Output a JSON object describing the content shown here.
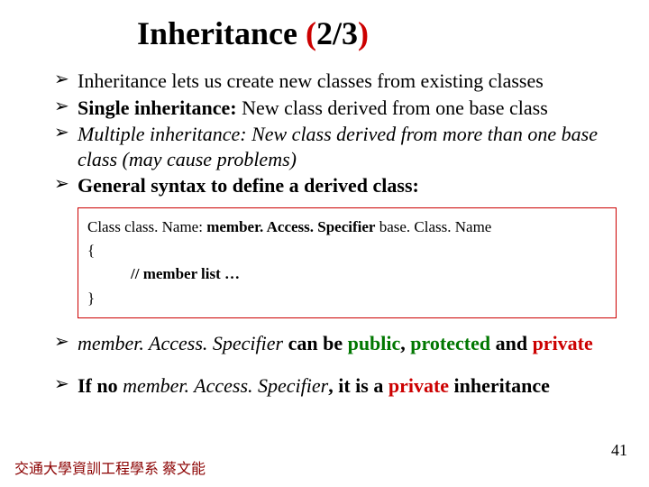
{
  "colors": {
    "title_c1": "#000000",
    "title_c2": "#cc0000",
    "title_c3": "#000000",
    "title_c4": "#cc0000",
    "green": "#007700",
    "red": "#cc0000",
    "box_border": "#cc0000",
    "footer": "#8b0000"
  },
  "title": {
    "p1": "Inheritance ",
    "p2": "(",
    "p3": "2/3",
    "p4": ")"
  },
  "bul1": {
    "text": "Inheritance lets us create new classes from existing classes"
  },
  "bul2": {
    "lead": "Single inheritance:",
    "rest": " New class derived from one base class"
  },
  "bul3": {
    "lead": "Multiple inheritance:",
    "rest1": " New class derived from more than one base class ",
    "rest2": "(may cause problems)"
  },
  "bul4": {
    "text": "General syntax to define a derived class:"
  },
  "code": {
    "l1a": "Class class. Name: ",
    "l1b": "member. Access. Specifier",
    "l1c": " base. Class. Name",
    "l2": "{",
    "l3": "// member list …",
    "l4": "}"
  },
  "bul5": {
    "p1": "member. Access. Specifier",
    "p2": " can be ",
    "p3": "public",
    "p4": ", ",
    "p5": "protected ",
    "p6": "and ",
    "p7": "private"
  },
  "bul6": {
    "p1": "If no ",
    "p2": "member. Access. Specifier",
    "p3": ", it is a ",
    "p4": "private",
    "p5": " inheritance"
  },
  "footer": "交通大學資訓工程學系 蔡文能",
  "pagenum": "41"
}
